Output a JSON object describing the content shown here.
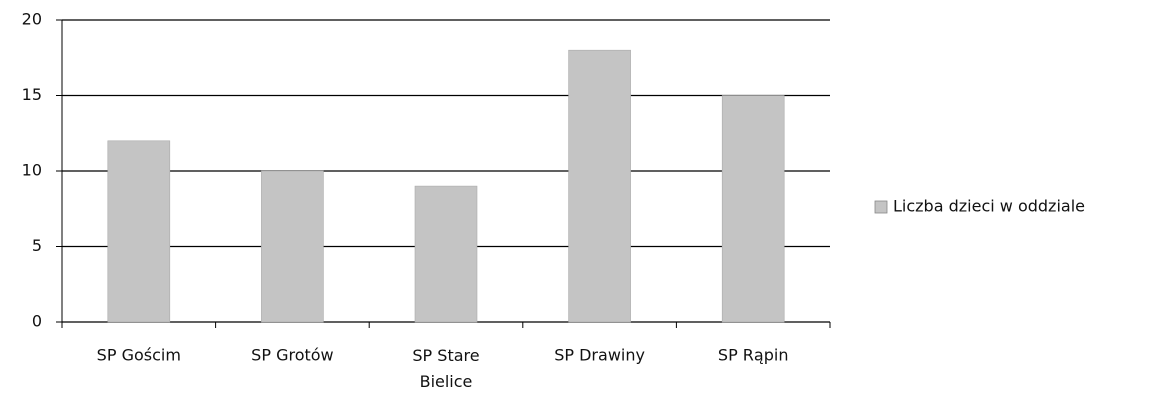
{
  "chart_data": {
    "type": "bar",
    "categories": [
      "SP Gościm",
      "SP Grotów",
      "SP Stare Bielice",
      "SP Drawiny",
      "SP Rąpin"
    ],
    "series": [
      {
        "name": "Liczba dzieci w oddziale",
        "color": "#c4c4c4",
        "values": [
          12,
          10,
          9,
          18,
          15
        ]
      }
    ],
    "ylim": [
      0,
      20
    ],
    "yticks": [
      0,
      5,
      10,
      15,
      20
    ],
    "grid": true,
    "legend": "right"
  }
}
